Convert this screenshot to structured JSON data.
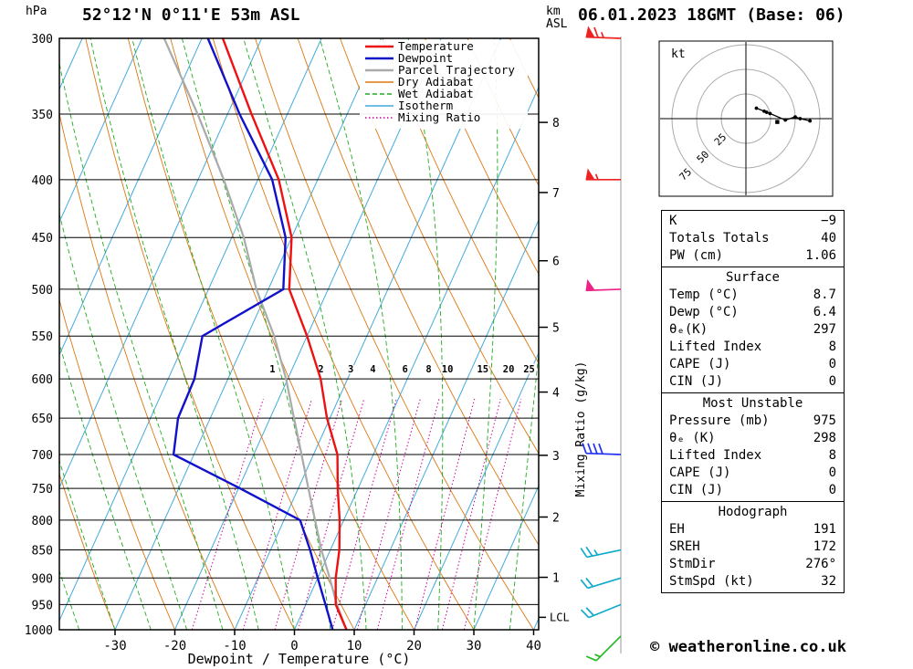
{
  "header": {
    "station": "52°12'N 0°11'E 53m ASL",
    "datetime": "06.01.2023 18GMT (Base: 06)"
  },
  "footer": {
    "credit": "© weatheronline.co.uk"
  },
  "palette": {
    "temperature": "#ee1111",
    "dewpoint": "#1111cc",
    "parcel": "#aaaaaa",
    "dry_adiabat": "#dd7711",
    "wet_adiabat": "#22aa22",
    "isotherm": "#44aadd",
    "mixing_ratio": "#cc0099",
    "grid": "#000000",
    "barb_column": "#999999"
  },
  "axes": {
    "pressure_unit": "hPa",
    "pressure_ticks": [
      300,
      350,
      400,
      450,
      500,
      550,
      600,
      650,
      700,
      750,
      800,
      850,
      900,
      950,
      1000
    ],
    "temp_ticks": [
      -30,
      -20,
      -10,
      0,
      10,
      20,
      30,
      40
    ],
    "x_label": "Dewpoint / Temperature (°C)",
    "km_unit_line1": "km",
    "km_unit_line2": "ASL",
    "km_ticks": [
      1,
      2,
      3,
      4,
      5,
      6,
      7,
      8
    ],
    "lcl_label": "LCL",
    "mixing_axis_label": "Mixing Ratio (g/kg)"
  },
  "legend": [
    {
      "label": "Temperature",
      "color": "#ee1111",
      "dash": "",
      "width": 2.5
    },
    {
      "label": "Dewpoint",
      "color": "#1111cc",
      "dash": "",
      "width": 2.5
    },
    {
      "label": "Parcel Trajectory",
      "color": "#aaaaaa",
      "dash": "",
      "width": 2.5
    },
    {
      "label": "Dry Adiabat",
      "color": "#dd7711",
      "dash": "",
      "width": 1.4
    },
    {
      "label": "Wet Adiabat",
      "color": "#22aa22",
      "dash": "5,3",
      "width": 1.4
    },
    {
      "label": "Isotherm",
      "color": "#44aadd",
      "dash": "",
      "width": 1.4
    },
    {
      "label": "Mixing Ratio",
      "color": "#cc0099",
      "dash": "1.5,2.5",
      "width": 1.4
    }
  ],
  "chart_data": {
    "type": "skewt-logp",
    "pressure_range_hpa": [
      300,
      1000
    ],
    "temp_axis_range_c": [
      -40,
      40
    ],
    "temperature_profile": {
      "pressure_hpa": [
        1000,
        950,
        900,
        850,
        800,
        750,
        700,
        650,
        600,
        550,
        500,
        450,
        400,
        350,
        300
      ],
      "temp_c": [
        8.7,
        5.0,
        3.0,
        1.5,
        -0.7,
        -3.4,
        -6.0,
        -10.5,
        -14.5,
        -20.0,
        -26.5,
        -30.0,
        -36.5,
        -46.0,
        -56.5
      ]
    },
    "dewpoint_profile": {
      "pressure_hpa": [
        1000,
        950,
        900,
        850,
        800,
        750,
        700,
        650,
        600,
        550,
        500,
        450,
        400,
        350,
        300
      ],
      "temp_c": [
        6.4,
        3.3,
        0.0,
        -3.4,
        -7.3,
        -19.7,
        -33.4,
        -35.4,
        -35.6,
        -37.5,
        -27.5,
        -31.0,
        -37.6,
        -48.0,
        -59.0
      ]
    },
    "parcel_profile": {
      "pressure_hpa": [
        1000,
        950,
        900,
        850,
        800,
        750,
        700,
        650,
        600,
        550,
        500,
        450,
        400,
        350,
        300
      ],
      "temp_c": [
        8.7,
        5.2,
        2.0,
        -1.5,
        -4.8,
        -8.3,
        -12.0,
        -16.0,
        -20.3,
        -25.5,
        -32.0,
        -38.0,
        -45.7,
        -55.0,
        -66.3
      ]
    },
    "lcl_pressure_hpa": 975,
    "mixing_ratio_lines_gkg": [
      1,
      2,
      3,
      4,
      6,
      8,
      10,
      15,
      20,
      25
    ],
    "isotherm_step_c": 10,
    "dry_adiabat_step_c": 10,
    "wet_adiabat_step_c": 6,
    "winds": [
      {
        "pressure_hpa": 300,
        "dir_deg": 272,
        "speed_kt": 65,
        "color": "#ee2222"
      },
      {
        "pressure_hpa": 400,
        "dir_deg": 270,
        "speed_kt": 55,
        "color": "#ee2222"
      },
      {
        "pressure_hpa": 500,
        "dir_deg": 268,
        "speed_kt": 50,
        "color": "#ee2288"
      },
      {
        "pressure_hpa": 700,
        "dir_deg": 272,
        "speed_kt": 40,
        "color": "#2233ee"
      },
      {
        "pressure_hpa": 850,
        "dir_deg": 258,
        "speed_kt": 25,
        "color": "#11aacc"
      },
      {
        "pressure_hpa": 900,
        "dir_deg": 253,
        "speed_kt": 22,
        "color": "#11aacc"
      },
      {
        "pressure_hpa": 950,
        "dir_deg": 248,
        "speed_kt": 20,
        "color": "#11aacc"
      },
      {
        "pressure_hpa": 1013,
        "dir_deg": 225,
        "speed_kt": 15,
        "color": "#22bb22"
      }
    ]
  },
  "hodograph": {
    "unit_label": "kt",
    "rings_kt": [
      25,
      50,
      75
    ],
    "ring_labels": [
      "25",
      "50",
      "75"
    ],
    "storm_motion": {
      "dir_deg": 276,
      "speed_kt": 32
    }
  },
  "stats": {
    "sections": [
      {
        "header": "",
        "rows": [
          [
            "K",
            "−9"
          ],
          [
            "Totals Totals",
            "40"
          ],
          [
            "PW (cm)",
            "1.06"
          ]
        ]
      },
      {
        "header": "Surface",
        "rows": [
          [
            "Temp (°C)",
            "8.7"
          ],
          [
            "Dewp (°C)",
            "6.4"
          ],
          [
            "θₑ(K)",
            "297"
          ],
          [
            "Lifted Index",
            "8"
          ],
          [
            "CAPE (J)",
            "0"
          ],
          [
            "CIN (J)",
            "0"
          ]
        ]
      },
      {
        "header": "Most Unstable",
        "rows": [
          [
            "Pressure (mb)",
            "975"
          ],
          [
            "θₑ (K)",
            "298"
          ],
          [
            "Lifted Index",
            "8"
          ],
          [
            "CAPE (J)",
            "0"
          ],
          [
            "CIN (J)",
            "0"
          ]
        ]
      },
      {
        "header": "Hodograph",
        "rows": [
          [
            "EH",
            "191"
          ],
          [
            "SREH",
            "172"
          ],
          [
            "StmDir",
            "276°"
          ],
          [
            "StmSpd (kt)",
            "32"
          ]
        ]
      }
    ]
  }
}
